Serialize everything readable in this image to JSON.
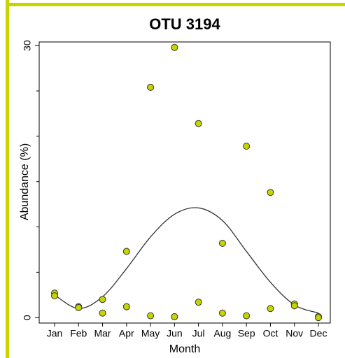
{
  "chart_data": {
    "type": "scatter",
    "title": "OTU 3194",
    "xlabel": "Month",
    "ylabel": "Abundance (%)",
    "categories": [
      "Jan",
      "Feb",
      "Mar",
      "Apr",
      "May",
      "Jun",
      "Jul",
      "Aug",
      "Sep",
      "Oct",
      "Nov",
      "Dec"
    ],
    "series": [
      {
        "color": "#c8d400",
        "values": [
          2.7,
          1.2,
          2.0,
          7.3,
          25.4,
          29.8,
          21.4,
          8.2,
          18.9,
          13.8,
          1.5,
          0.1
        ]
      },
      {
        "color": "#c8d400",
        "values": [
          2.4,
          1.1,
          0.5,
          1.2,
          0.2,
          0.1,
          1.7,
          0.5,
          0.2,
          1.0,
          1.3,
          0
        ]
      }
    ],
    "fit": {
      "color": "#333333",
      "values": [
        2.5,
        1.0,
        2.3,
        5.4,
        8.9,
        11.4,
        12.1,
        10.7,
        7.3,
        3.9,
        1.4,
        0.5
      ]
    },
    "ylim": [
      -0.6,
      30.4
    ],
    "yticks": [
      0,
      30
    ],
    "yminor_ticks": [
      5,
      10,
      15,
      20,
      25
    ]
  }
}
